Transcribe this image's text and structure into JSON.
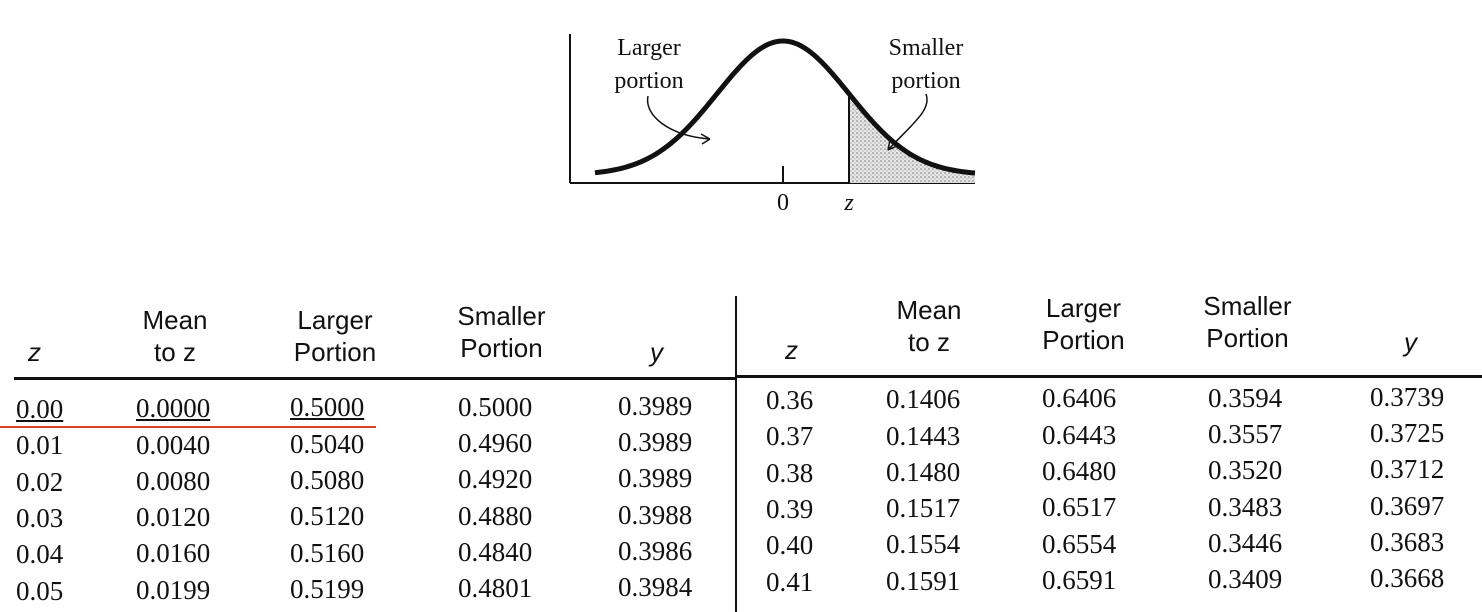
{
  "figure": {
    "left_label": [
      "Larger",
      "portion"
    ],
    "right_label": [
      "Smaller",
      "portion"
    ],
    "axis_zero": "0",
    "axis_z": "z"
  },
  "columns": {
    "left": {
      "z": "z",
      "mean_to_z": [
        "Mean",
        "to z"
      ],
      "larger": [
        "Larger",
        "Portion"
      ],
      "smaller": [
        "Smaller",
        "Portion"
      ],
      "y": "y"
    },
    "right": {
      "z": "z",
      "mean_to_z": [
        "Mean",
        "to z"
      ],
      "larger": [
        "Larger",
        "Portion"
      ],
      "smaller": [
        "Smaller",
        "Portion"
      ],
      "y": "y"
    }
  },
  "left_rows": [
    [
      "0.00",
      "0.0000",
      "0.5000",
      "0.5000",
      "0.3989"
    ],
    [
      "0.01",
      "0.0040",
      "0.5040",
      "0.4960",
      "0.3989"
    ],
    [
      "0.02",
      "0.0080",
      "0.5080",
      "0.4920",
      "0.3989"
    ],
    [
      "0.03",
      "0.0120",
      "0.5120",
      "0.4880",
      "0.3988"
    ],
    [
      "0.04",
      "0.0160",
      "0.5160",
      "0.4840",
      "0.3986"
    ],
    [
      "0.05",
      "0.0199",
      "0.5199",
      "0.4801",
      "0.3984"
    ]
  ],
  "right_rows": [
    [
      "0.36",
      "0.1406",
      "0.6406",
      "0.3594",
      "0.3739"
    ],
    [
      "0.37",
      "0.1443",
      "0.6443",
      "0.3557",
      "0.3725"
    ],
    [
      "0.38",
      "0.1480",
      "0.6480",
      "0.3520",
      "0.3712"
    ],
    [
      "0.39",
      "0.1517",
      "0.6517",
      "0.3483",
      "0.3697"
    ],
    [
      "0.40",
      "0.1554",
      "0.6554",
      "0.3446",
      "0.3683"
    ],
    [
      "0.41",
      "0.1591",
      "0.6591",
      "0.3409",
      "0.3668"
    ]
  ]
}
